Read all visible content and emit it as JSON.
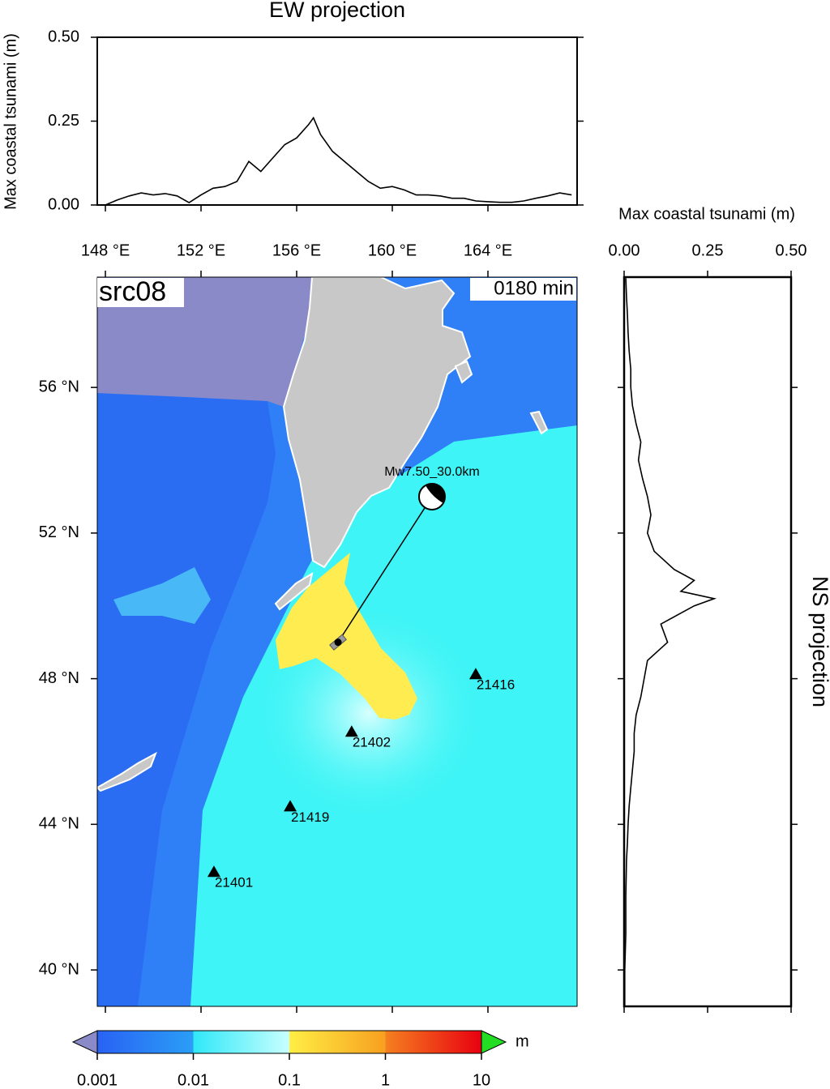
{
  "chart_data": [
    {
      "type": "line",
      "title": "EW projection",
      "ylabel": "Max coastal tsunami (m)",
      "x": [
        148,
        148.5,
        149,
        149.5,
        150,
        150.5,
        151,
        151.5,
        152,
        152.5,
        153,
        153.5,
        154,
        154.5,
        155,
        155.5,
        156,
        156.5,
        156.7,
        157,
        157.5,
        158,
        158.5,
        159,
        159.5,
        160,
        160.5,
        161,
        161.5,
        162,
        162.5,
        163,
        163.5,
        164,
        164.5,
        165,
        165.5,
        166,
        166.5,
        167,
        167.5
      ],
      "values": [
        0.0,
        0.015,
        0.027,
        0.036,
        0.03,
        0.034,
        0.027,
        0.007,
        0.03,
        0.05,
        0.055,
        0.07,
        0.13,
        0.1,
        0.14,
        0.18,
        0.2,
        0.24,
        0.26,
        0.21,
        0.16,
        0.13,
        0.1,
        0.07,
        0.05,
        0.055,
        0.045,
        0.03,
        0.03,
        0.027,
        0.02,
        0.02,
        0.012,
        0.01,
        0.008,
        0.008,
        0.012,
        0.02,
        0.027,
        0.036,
        0.03
      ],
      "color": "#000000",
      "xlim": [
        147.66,
        167.73
      ],
      "ylim": [
        0,
        0.5
      ],
      "yticks": [
        {
          "value": 0,
          "label": "0.00"
        },
        {
          "value": 0.25,
          "label": "0.25"
        },
        {
          "value": 0.5,
          "label": "0.50"
        }
      ]
    },
    {
      "type": "line",
      "orientation": "horizontal",
      "title": "NS projection",
      "xlabel": "Max coastal tsunami (m)",
      "y": [
        39,
        40,
        41,
        42,
        43,
        43.5,
        44,
        44.5,
        45,
        45.5,
        46,
        46.5,
        47,
        47.5,
        48,
        48.5,
        49,
        49.5,
        49.8,
        50,
        50.2,
        50.4,
        50.7,
        51,
        51.5,
        52,
        52.5,
        53,
        53.5,
        54,
        54.5,
        55,
        55.5,
        56,
        56.5,
        57,
        57.5,
        58,
        58.5,
        59
      ],
      "values": [
        0.002,
        0.002,
        0.005,
        0.005,
        0.007,
        0.01,
        0.012,
        0.015,
        0.02,
        0.025,
        0.03,
        0.03,
        0.036,
        0.05,
        0.06,
        0.07,
        0.13,
        0.11,
        0.17,
        0.21,
        0.27,
        0.17,
        0.21,
        0.15,
        0.09,
        0.07,
        0.08,
        0.07,
        0.055,
        0.043,
        0.05,
        0.036,
        0.025,
        0.02,
        0.02,
        0.015,
        0.012,
        0.01,
        0.007,
        0.005
      ],
      "color": "#000000",
      "xlim": [
        0,
        0.5
      ],
      "ylim": [
        39,
        59.03
      ],
      "xticks": [
        {
          "value": 0,
          "label": "0.00"
        },
        {
          "value": 0.25,
          "label": "0.25"
        },
        {
          "value": 0.5,
          "label": "0.50"
        }
      ]
    }
  ],
  "map": {
    "label": "src08",
    "time": "0180 min",
    "xlim": [
      147.66,
      167.73
    ],
    "ylim": [
      39,
      59.03
    ],
    "xticks": [
      {
        "value": 148,
        "label": "148 °E"
      },
      {
        "value": 152,
        "label": "152 °E"
      },
      {
        "value": 156,
        "label": "156 °E"
      },
      {
        "value": 160,
        "label": "160 °E"
      },
      {
        "value": 164,
        "label": "164 °E"
      }
    ],
    "yticks": [
      {
        "value": 40,
        "label": "40 °N"
      },
      {
        "value": 44,
        "label": "44 °N"
      },
      {
        "value": 48,
        "label": "48 °N"
      },
      {
        "value": 52,
        "label": "52 °N"
      },
      {
        "value": 56,
        "label": "56 °N"
      }
    ],
    "source": {
      "label": "Mw7.50_30.0km",
      "lon": 161.66,
      "lat": 53.0,
      "fault_lon": 157.73,
      "fault_lat": 49.0
    },
    "stations": [
      {
        "name": "21416",
        "lon": 163.49,
        "lat": 48.12
      },
      {
        "name": "21402",
        "lon": 158.3,
        "lat": 46.54
      },
      {
        "name": "21419",
        "lon": 155.73,
        "lat": 44.49
      },
      {
        "name": "21401",
        "lon": 152.54,
        "lat": 42.69
      }
    ]
  },
  "colorbar": {
    "unit": "m",
    "lim": [
      0.001,
      10
    ],
    "ticks": [
      0.001,
      0.01,
      0.1,
      1,
      10
    ],
    "log": true
  }
}
